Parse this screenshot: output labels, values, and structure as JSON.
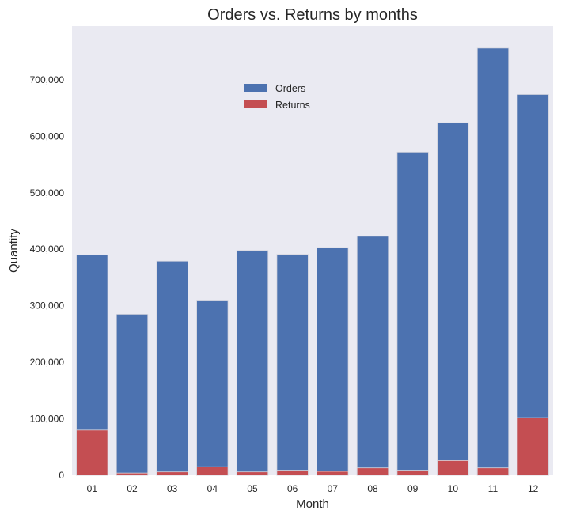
{
  "chart_data": {
    "type": "bar",
    "stacking": "overlaid",
    "title": "Orders vs. Returns by months",
    "xlabel": "Month",
    "ylabel": "Quantity",
    "categories": [
      "01",
      "02",
      "03",
      "04",
      "05",
      "06",
      "07",
      "08",
      "09",
      "10",
      "11",
      "12"
    ],
    "series": [
      {
        "name": "Orders",
        "color": "#4c72b0",
        "values": [
          390000,
          285000,
          379000,
          310000,
          398000,
          391000,
          403000,
          423000,
          572000,
          624000,
          756000,
          674000
        ]
      },
      {
        "name": "Returns",
        "color": "#c44e52",
        "values": [
          80000,
          4000,
          6000,
          15000,
          6000,
          9000,
          7000,
          13000,
          9000,
          26000,
          13000,
          102000
        ]
      }
    ],
    "ylim": [
      0,
      795000
    ],
    "yticks": [
      0,
      100000,
      200000,
      300000,
      400000,
      500000,
      600000,
      700000
    ],
    "ytick_labels": [
      "0",
      "100,000",
      "200,000",
      "300,000",
      "400,000",
      "500,000",
      "600,000",
      "700,000"
    ],
    "grid": false,
    "plot_background": "#eaeaf2",
    "legend_position": "upper-center"
  }
}
